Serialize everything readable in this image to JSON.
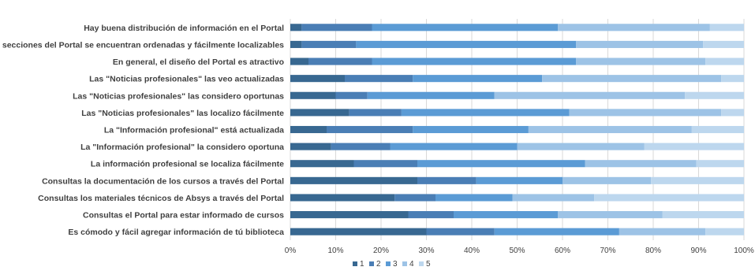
{
  "chart_data": {
    "type": "bar",
    "orientation": "horizontal",
    "stacked": "percent",
    "categories": [
      "Hay buena distribución de información en el Portal",
      "Las secciones del Portal se encuentran ordenadas y fácilmente localizables",
      "En general, el diseño del Portal es atractivo",
      "Las \"Noticias profesionales\" las veo actualizadas",
      "Las \"Noticias profesionales\" las considero oportunas",
      "Las \"Noticias profesionales\" las localizo fácilmente",
      "La \"Información profesional\" está actualizada",
      "La \"Información profesional\" la considero oportuna",
      "La información profesional se localiza fácilmente",
      "Consultas la documentación de los cursos a través del Portal",
      "Consultas los materiales técnicos de Absys a través del Portal",
      "Consultas el Portal para estar informado de cursos",
      "Es cómodo y fácil agregar información de tú biblioteca"
    ],
    "series": [
      {
        "name": "1",
        "color": "#386891",
        "values": [
          2.5,
          2.5,
          4,
          12,
          10,
          13,
          8,
          9,
          14,
          28,
          23,
          26,
          30
        ]
      },
      {
        "name": "2",
        "color": "#4a7eb5",
        "values": [
          15.5,
          12,
          14,
          15,
          7,
          11.5,
          19,
          13,
          14,
          13,
          9,
          10,
          15
        ]
      },
      {
        "name": "3",
        "color": "#5b9bd5",
        "values": [
          41,
          48.5,
          45,
          28.5,
          28,
          37,
          25.5,
          28,
          37,
          19,
          17,
          23,
          27.5
        ]
      },
      {
        "name": "4",
        "color": "#9dc3e6",
        "values": [
          33.5,
          28,
          28.5,
          39.5,
          42,
          33.5,
          36,
          28,
          24.5,
          19.5,
          18,
          23,
          19
        ]
      },
      {
        "name": "5",
        "color": "#bdd7ee",
        "values": [
          7.5,
          9,
          8.5,
          5,
          13,
          5,
          11.5,
          22,
          10.5,
          20.5,
          33,
          18,
          8.5
        ]
      }
    ],
    "xlim": [
      0,
      100
    ],
    "xticks": [
      "0%",
      "10%",
      "20%",
      "30%",
      "40%",
      "50%",
      "60%",
      "70%",
      "80%",
      "90%",
      "100%"
    ],
    "grid": true,
    "legend_position": "bottom"
  }
}
